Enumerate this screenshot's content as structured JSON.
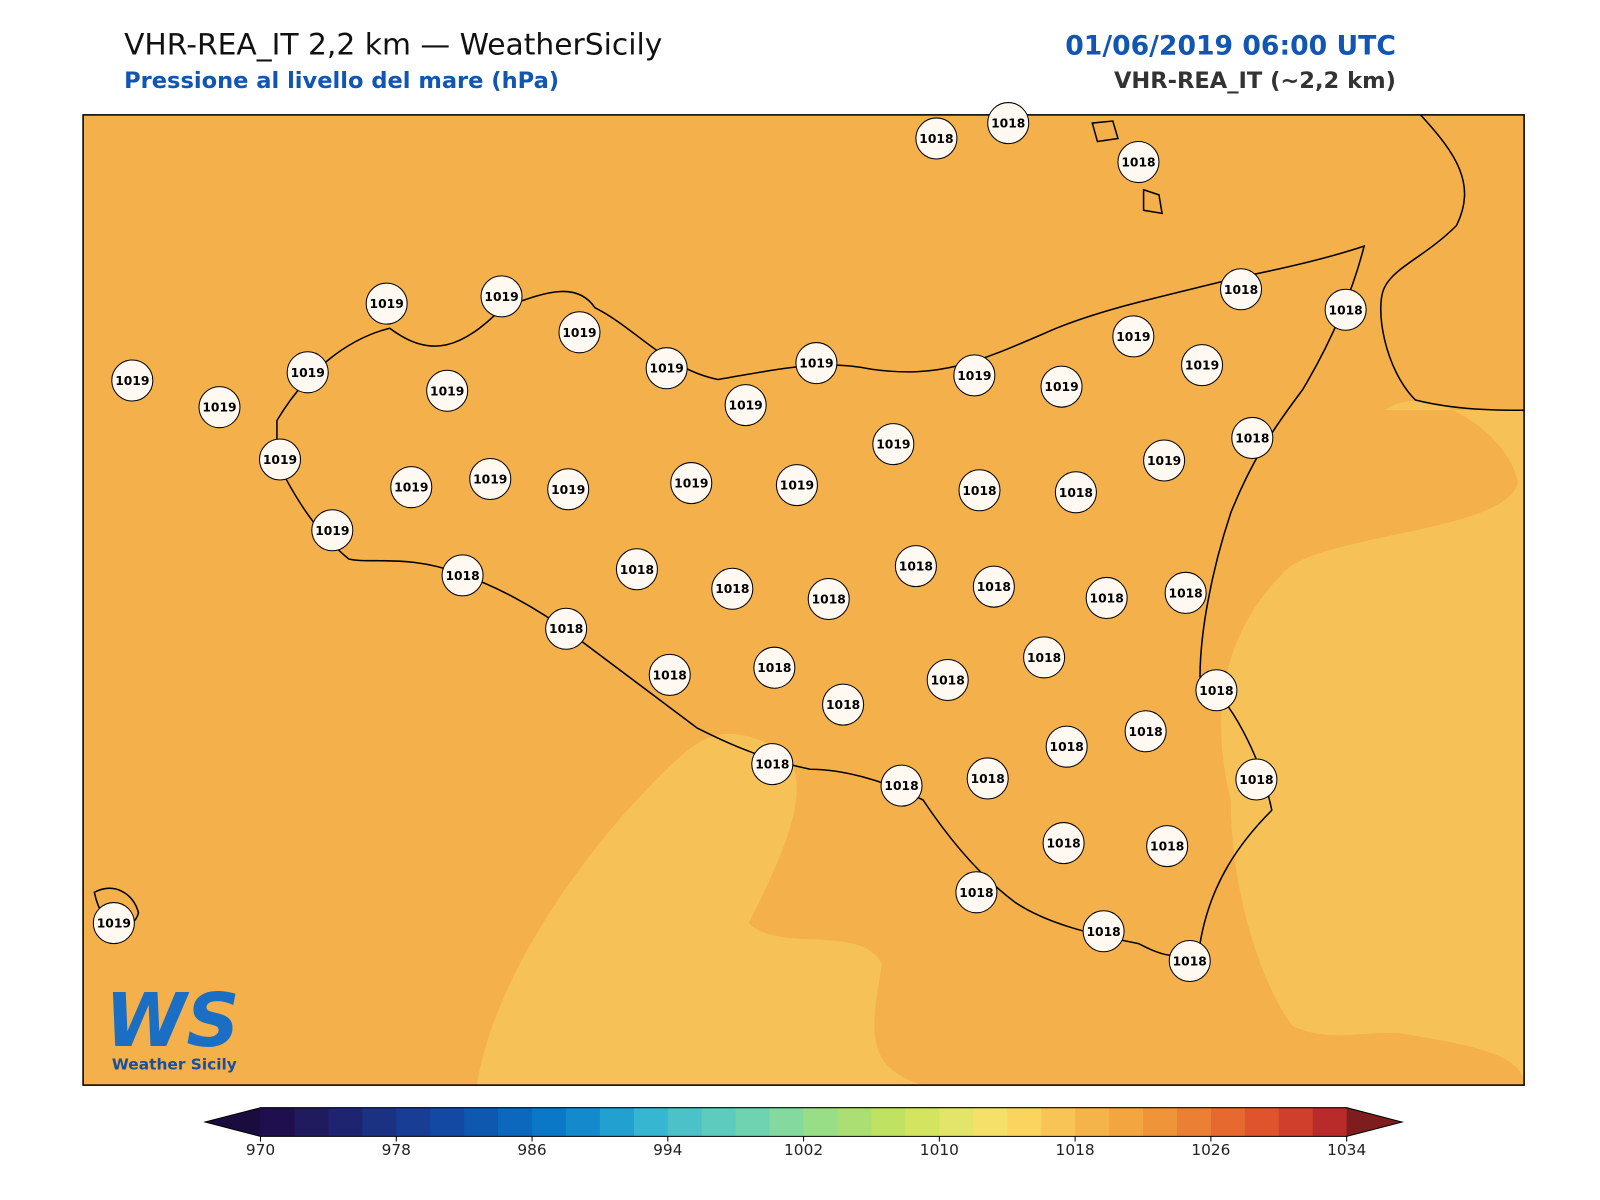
{
  "header": {
    "title": "VHR-REA_IT 2,2 km — WeatherSicily",
    "subtitle": "Pressione al livello del mare (hPa)",
    "datetime": "01/06/2019 06:00 UTC",
    "model": "VHR-REA_IT (~2,2 km)"
  },
  "map": {
    "stations": [
      1018,
      1018,
      1018,
      1018,
      1018,
      1019,
      1019,
      1019,
      1019,
      1019,
      1019,
      1019,
      1019,
      1019,
      1019,
      1019,
      1019,
      1019,
      1019,
      1019,
      1019,
      1019,
      1019,
      1019,
      1019,
      1019,
      1019,
      1019,
      1019,
      1018,
      1018,
      1018,
      1018,
      1018,
      1018,
      1018,
      1018,
      1018,
      1018,
      1018,
      1018,
      1018,
      1018,
      1018,
      1018,
      1018,
      1018,
      1018,
      1018,
      1018,
      1018,
      1018,
      1018,
      1018,
      1018,
      1018,
      1018,
      1018
    ],
    "fill_color": "#f4b04a",
    "light_color": "#f6c257"
  },
  "colorbar": {
    "lim": [
      970,
      1034
    ],
    "ticks": [
      970,
      978,
      986,
      994,
      1002,
      1010,
      1018,
      1026,
      1034
    ],
    "colors": [
      "#1f0f4e",
      "#201a5e",
      "#1f2470",
      "#1b3282",
      "#173e94",
      "#1349a3",
      "#0f58b0",
      "#0b68bd",
      "#0a78c6",
      "#148acc",
      "#22a0d0",
      "#36b6d1",
      "#4cc2c8",
      "#5ecbbf",
      "#6fd3b2",
      "#84da9e",
      "#98de87",
      "#acdf73",
      "#bfe262",
      "#d2e460",
      "#e3e56a",
      "#f5e06a",
      "#fbd45f",
      "#f9c456",
      "#f5b44a",
      "#f3a63f",
      "#ef9438",
      "#eb8034",
      "#e66a2f",
      "#df542c",
      "#d03e2c",
      "#b92a2b"
    ],
    "under_color": "#1a0c3f",
    "over_color": "#7d1d1e"
  },
  "logo": {
    "mark": "WS",
    "name": "Weather Sicily"
  }
}
